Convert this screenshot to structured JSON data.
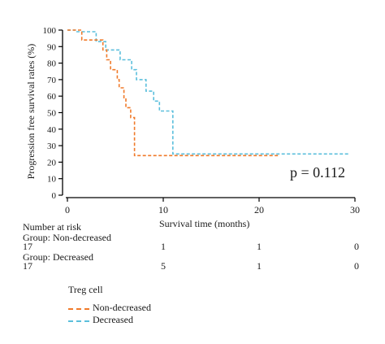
{
  "chart_data": {
    "type": "line",
    "subtype": "kaplan-meier",
    "ylabel": "Progression free survival rates (%)",
    "xlabel": "Survival time (months)",
    "xlim": [
      0,
      30
    ],
    "ylim": [
      0,
      100
    ],
    "xticks": [
      0,
      10,
      20,
      30
    ],
    "yticks": [
      0,
      10,
      20,
      30,
      40,
      50,
      60,
      70,
      80,
      90,
      100
    ],
    "grid": false,
    "annotation": "p = 0.112",
    "legend": {
      "title": "Treg cell",
      "placement": "bottom-left",
      "entries": [
        "Non-decreased",
        "Decreased"
      ]
    },
    "series": [
      {
        "name": "Non-decreased",
        "color": "#f07a2a",
        "steps": [
          [
            0,
            100
          ],
          [
            1.5,
            100
          ],
          [
            1.5,
            94
          ],
          [
            3.7,
            94
          ],
          [
            3.7,
            88
          ],
          [
            4.1,
            88
          ],
          [
            4.1,
            82
          ],
          [
            4.5,
            82
          ],
          [
            4.5,
            76
          ],
          [
            5.2,
            76
          ],
          [
            5.2,
            70
          ],
          [
            5.4,
            70
          ],
          [
            5.4,
            65
          ],
          [
            5.9,
            65
          ],
          [
            5.9,
            59
          ],
          [
            6.1,
            59
          ],
          [
            6.1,
            53
          ],
          [
            6.6,
            53
          ],
          [
            6.6,
            47
          ],
          [
            7.0,
            47
          ],
          [
            7.0,
            24
          ],
          [
            22,
            24
          ]
        ]
      },
      {
        "name": "Decreased",
        "color": "#5bbfdc",
        "steps": [
          [
            0,
            100
          ],
          [
            1.0,
            100
          ],
          [
            1.0,
            99
          ],
          [
            3.0,
            99
          ],
          [
            3.0,
            93
          ],
          [
            4.0,
            93
          ],
          [
            4.0,
            88
          ],
          [
            5.5,
            88
          ],
          [
            5.5,
            82
          ],
          [
            6.7,
            82
          ],
          [
            6.7,
            76
          ],
          [
            7.2,
            76
          ],
          [
            7.2,
            70
          ],
          [
            8.2,
            70
          ],
          [
            8.2,
            63
          ],
          [
            9.0,
            63
          ],
          [
            9.0,
            57
          ],
          [
            9.6,
            57
          ],
          [
            9.6,
            51
          ],
          [
            11.0,
            51
          ],
          [
            11.0,
            25
          ],
          [
            29.5,
            25
          ]
        ]
      }
    ],
    "number_at_risk": {
      "title": "Number at risk",
      "times": [
        0,
        10,
        20,
        30
      ],
      "groups": [
        {
          "label": "Group: Non-decreased",
          "counts": [
            "17",
            "1",
            "1",
            "0"
          ]
        },
        {
          "label": "Group: Decreased",
          "counts": [
            "17",
            "5",
            "1",
            "0"
          ]
        }
      ]
    }
  }
}
